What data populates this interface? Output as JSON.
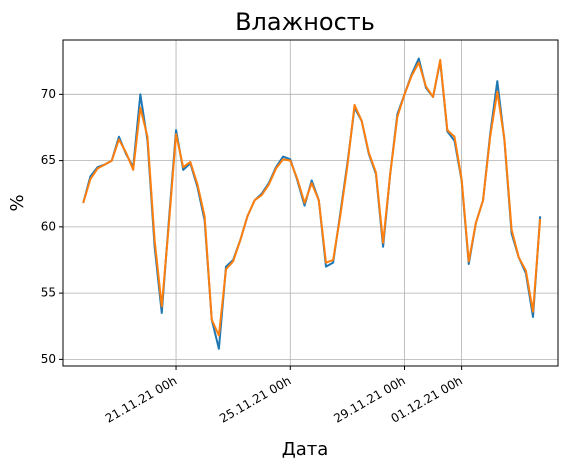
{
  "chart_data": {
    "type": "line",
    "title": "Влажность",
    "xlabel": "Дата",
    "ylabel": "%",
    "x": [
      "17.11.21 18h",
      "18.11.21 00h",
      "18.11.21 06h",
      "18.11.21 12h",
      "18.11.21 18h",
      "19.11.21 00h",
      "19.11.21 06h",
      "19.11.21 12h",
      "19.11.21 18h",
      "20.11.21 00h",
      "20.11.21 06h",
      "20.11.21 12h",
      "20.11.21 18h",
      "21.11.21 00h",
      "21.11.21 06h",
      "21.11.21 12h",
      "21.11.21 18h",
      "22.11.21 00h",
      "22.11.21 06h",
      "22.11.21 12h",
      "22.11.21 18h",
      "23.11.21 00h",
      "23.11.21 06h",
      "23.11.21 12h",
      "23.11.21 18h",
      "24.11.21 00h",
      "24.11.21 06h",
      "24.11.21 12h",
      "24.11.21 18h",
      "25.11.21 00h",
      "25.11.21 06h",
      "25.11.21 12h",
      "25.11.21 18h",
      "26.11.21 00h",
      "26.11.21 06h",
      "26.11.21 12h",
      "26.11.21 18h",
      "27.11.21 00h",
      "27.11.21 06h",
      "27.11.21 12h",
      "27.11.21 18h",
      "28.11.21 00h",
      "28.11.21 06h",
      "28.11.21 12h",
      "28.11.21 18h",
      "29.11.21 00h",
      "29.11.21 06h",
      "29.11.21 12h",
      "29.11.21 18h",
      "30.11.21 00h",
      "30.11.21 06h",
      "30.11.21 12h",
      "30.11.21 18h",
      "01.12.21 00h",
      "01.12.21 06h",
      "01.12.21 12h",
      "01.12.21 18h",
      "02.12.21 00h",
      "02.12.21 06h",
      "02.12.21 12h",
      "02.12.21 18h",
      "03.12.21 00h",
      "03.12.21 06h",
      "03.12.21 12h",
      "03.12.21 18h"
    ],
    "series": [
      {
        "color": "#1f77b4",
        "values": [
          61.8,
          63.8,
          64.5,
          64.7,
          65.0,
          66.8,
          65.5,
          64.5,
          70.0,
          66.5,
          58.5,
          53.5,
          60.5,
          67.3,
          64.3,
          64.8,
          63.0,
          60.5,
          53.0,
          50.8,
          57.0,
          57.5,
          59.0,
          60.8,
          62.0,
          62.5,
          63.3,
          64.5,
          65.3,
          65.1,
          63.5,
          61.6,
          63.5,
          62.0,
          57.0,
          57.3,
          61.0,
          64.8,
          69.0,
          68.0,
          65.5,
          64.0,
          58.5,
          64.0,
          68.5,
          70.0,
          71.5,
          72.7,
          70.5,
          69.8,
          72.5,
          67.2,
          66.5,
          63.5,
          57.2,
          60.3,
          62.0,
          67.0,
          71.0,
          66.5,
          59.5,
          57.7,
          56.5,
          53.2,
          60.8
        ]
      },
      {
        "color": "#ff7f0e",
        "values": [
          61.8,
          63.6,
          64.4,
          64.7,
          65.0,
          66.6,
          65.6,
          64.3,
          69.0,
          66.8,
          59.0,
          54.0,
          60.2,
          67.0,
          64.5,
          64.9,
          63.2,
          60.8,
          53.0,
          51.8,
          56.8,
          57.4,
          59.0,
          60.8,
          62.0,
          62.4,
          63.2,
          64.4,
          65.1,
          65.0,
          63.6,
          61.8,
          63.3,
          62.0,
          57.3,
          57.5,
          60.8,
          64.6,
          69.2,
          68.0,
          65.6,
          64.1,
          58.8,
          64.0,
          68.3,
          70.0,
          71.4,
          72.4,
          70.6,
          69.8,
          72.6,
          67.3,
          66.8,
          63.6,
          57.4,
          60.3,
          62.0,
          66.8,
          70.2,
          66.6,
          59.8,
          57.7,
          56.7,
          53.6,
          60.6
        ]
      }
    ],
    "xlim": [
      "17.11.21 01h",
      "04.12.21 09h"
    ],
    "xticks": [
      "21.11.21 00h",
      "25.11.21 00h",
      "29.11.21 00h",
      "01.12.21 00h"
    ],
    "ylim": [
      49.5,
      74.1
    ],
    "yticks": [
      50,
      55,
      60,
      65,
      70
    ],
    "grid": true
  }
}
